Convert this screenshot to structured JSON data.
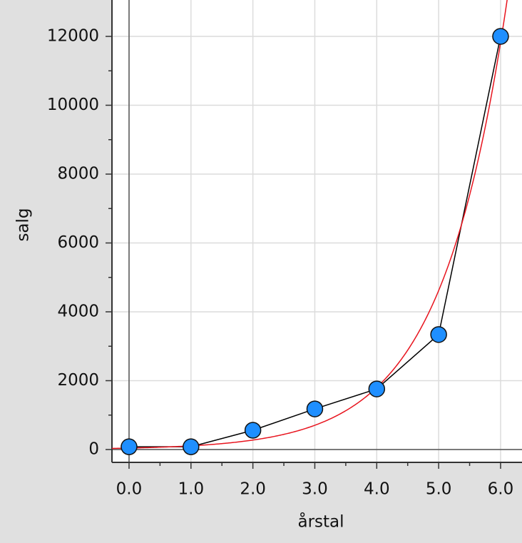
{
  "chart_data": {
    "type": "scatter",
    "x_label": "årstal",
    "y_label": "salg",
    "x": [
      0,
      1,
      2,
      3,
      4,
      5,
      6
    ],
    "series": [
      {
        "color": "#1f8fff",
        "line_color": "#000000",
        "values": [
          80,
          80,
          560,
          1180,
          1760,
          3340,
          12000
        ]
      }
    ],
    "fit": {
      "type": "exponential",
      "a": 42,
      "b": 2.56,
      "color": "#e8141e"
    },
    "xlim": [
      -0.276,
      6.346
    ],
    "ylim": [
      -373,
      13057
    ],
    "xticks": [
      {
        "value": 0,
        "label": "0.0"
      },
      {
        "value": 1,
        "label": "1.0"
      },
      {
        "value": 2,
        "label": "2.0"
      },
      {
        "value": 3,
        "label": "3.0"
      },
      {
        "value": 4,
        "label": "4.0"
      },
      {
        "value": 5,
        "label": "5.0"
      },
      {
        "value": 6,
        "label": "6.0"
      }
    ],
    "xminorticks": [
      0.5,
      1.5,
      2.5,
      3.5,
      4.5,
      5.5
    ],
    "yticks": [
      0,
      2000,
      4000,
      6000,
      8000,
      10000,
      12000
    ],
    "yminorticks": [
      1000,
      3000,
      5000,
      7000,
      9000,
      11000
    ],
    "grid": true
  }
}
